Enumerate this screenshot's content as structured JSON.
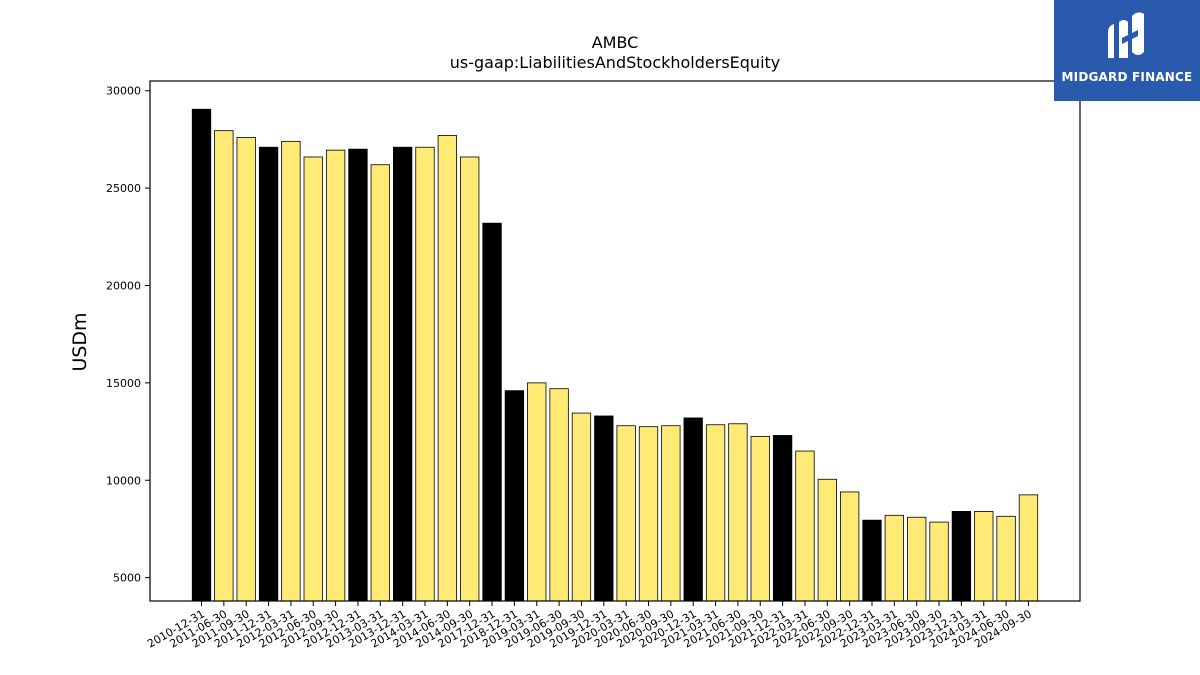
{
  "chart_data": {
    "type": "bar",
    "title": "AMBC",
    "subtitle": "us-gaap:LiabilitiesAndStockholdersEquity",
    "ylabel": "USDm",
    "xlabel": "",
    "ylim": [
      3800,
      30500
    ],
    "yticks": [
      5000,
      10000,
      15000,
      20000,
      25000,
      30000
    ],
    "grid": false,
    "colors": {
      "annual": "#000000",
      "quarterly": "#ffea75",
      "edge": "#000000"
    },
    "categories": [
      "2010-12-31",
      "2011-06-30",
      "2011-09-30",
      "2011-12-31",
      "2012-03-31",
      "2012-06-30",
      "2012-09-30",
      "2012-12-31",
      "2013-03-31",
      "2013-12-31",
      "2014-03-31",
      "2014-06-30",
      "2014-09-30",
      "2017-12-31",
      "2018-12-31",
      "2019-03-31",
      "2019-06-30",
      "2019-09-30",
      "2019-12-31",
      "2020-03-31",
      "2020-06-30",
      "2020-09-30",
      "2020-12-31",
      "2021-03-31",
      "2021-06-30",
      "2021-09-30",
      "2021-12-31",
      "2022-03-31",
      "2022-06-30",
      "2022-09-30",
      "2022-12-31",
      "2023-03-31",
      "2023-06-30",
      "2023-09-30",
      "2023-12-31",
      "2024-03-31",
      "2024-06-30",
      "2024-09-30"
    ],
    "values": [
      29050,
      27950,
      27600,
      27100,
      27400,
      26600,
      26950,
      27000,
      26200,
      27100,
      27100,
      27700,
      26600,
      23200,
      14600,
      15000,
      14700,
      13450,
      13300,
      12800,
      12750,
      12800,
      13200,
      12850,
      12900,
      12250,
      12300,
      11500,
      10050,
      9400,
      7950,
      8200,
      8100,
      7850,
      8400,
      8400,
      8150,
      9250
    ],
    "annual": [
      true,
      false,
      false,
      true,
      false,
      false,
      false,
      true,
      false,
      true,
      false,
      false,
      false,
      true,
      true,
      false,
      false,
      false,
      true,
      false,
      false,
      false,
      true,
      false,
      false,
      false,
      true,
      false,
      false,
      false,
      true,
      false,
      false,
      false,
      true,
      false,
      false,
      false
    ]
  },
  "logo": {
    "text": "MIDGARD FINANCE"
  }
}
